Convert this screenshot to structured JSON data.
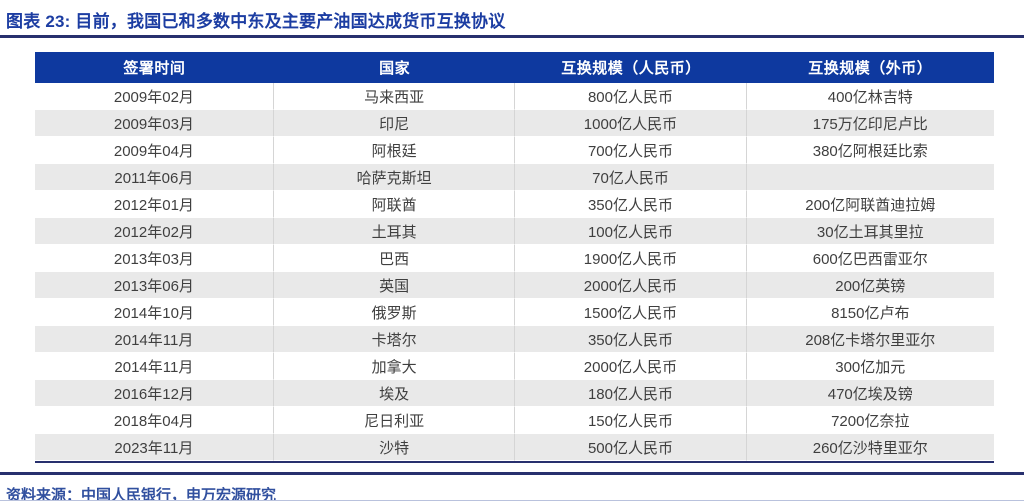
{
  "figure": {
    "title": "图表 23:  目前，我国已和多数中东及主要产油国达成货币互换协议",
    "source": "资料来源：中国人民银行，申万宏源研究"
  },
  "colors": {
    "title_blue": "#1c3da2",
    "rule_navy": "#28306e",
    "header_bg": "#0e399f",
    "alt_row": "#e9e9e9",
    "body_text": "#3f3f3f",
    "footer_blue": "#31509f"
  },
  "chart_data": {
    "type": "table",
    "title": "目前，我国已和多数中东及主要产油国达成货币互换协议",
    "columns": [
      "签署时间",
      "国家",
      "互换规模（人民币）",
      "互换规模（外币）"
    ],
    "rows": [
      [
        "2009年02月",
        "马来西亚",
        "800亿人民币",
        "400亿林吉特"
      ],
      [
        "2009年03月",
        "印尼",
        "1000亿人民币",
        "175万亿印尼卢比"
      ],
      [
        "2009年04月",
        "阿根廷",
        "700亿人民币",
        "380亿阿根廷比索"
      ],
      [
        "2011年06月",
        "哈萨克斯坦",
        "70亿人民币",
        ""
      ],
      [
        "2012年01月",
        "阿联酋",
        "350亿人民币",
        "200亿阿联酋迪拉姆"
      ],
      [
        "2012年02月",
        "土耳其",
        "100亿人民币",
        "30亿土耳其里拉"
      ],
      [
        "2013年03月",
        "巴西",
        "1900亿人民币",
        "600亿巴西雷亚尔"
      ],
      [
        "2013年06月",
        "英国",
        "2000亿人民币",
        "200亿英镑"
      ],
      [
        "2014年10月",
        "俄罗斯",
        "1500亿人民币",
        "8150亿卢布"
      ],
      [
        "2014年11月",
        "卡塔尔",
        "350亿人民币",
        "208亿卡塔尔里亚尔"
      ],
      [
        "2014年11月",
        "加拿大",
        "2000亿人民币",
        "300亿加元"
      ],
      [
        "2016年12月",
        "埃及",
        "180亿人民币",
        "470亿埃及镑"
      ],
      [
        "2018年04月",
        "尼日利亚",
        "150亿人民币",
        "7200亿奈拉"
      ],
      [
        "2023年11月",
        "沙特",
        "500亿人民币",
        "260亿沙特里亚尔"
      ]
    ]
  }
}
